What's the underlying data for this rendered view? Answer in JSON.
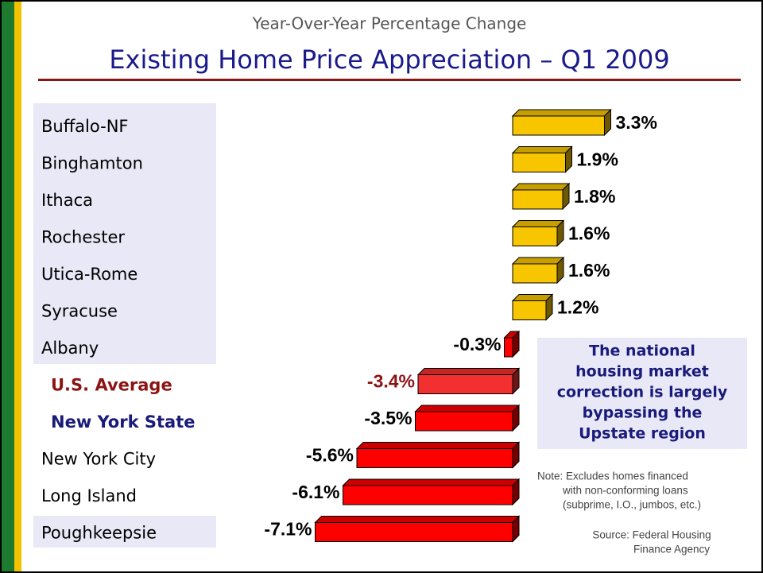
{
  "chart_data": {
    "type": "bar",
    "orientation": "horizontal",
    "subtitle": "Year-Over-Year Percentage Change",
    "title": "Existing Home Price Appreciation – Q1 2009",
    "categories": [
      "Buffalo-NF",
      "Binghamton",
      "Ithaca",
      "Rochester",
      "Utica-Rome",
      "Syracuse",
      "Albany",
      "U.S. Average",
      "New York State",
      "New York City",
      "Long Island",
      "Poughkeepsie"
    ],
    "category_colors": [
      "#000000",
      "#000000",
      "#000000",
      "#000000",
      "#000000",
      "#000000",
      "#000000",
      "#8b1414",
      "#1a1a7a",
      "#000000",
      "#000000",
      "#000000"
    ],
    "values": [
      3.3,
      1.9,
      1.8,
      1.6,
      1.6,
      1.2,
      -0.3,
      -3.4,
      -3.5,
      -5.6,
      -6.1,
      -7.1
    ],
    "value_labels": [
      "3.3%",
      "1.9%",
      "1.8%",
      "1.6%",
      "1.6%",
      "1.2%",
      "-0.3%",
      "-3.4%",
      "-3.5%",
      "-5.6%",
      "-6.1%",
      "-7.1%"
    ],
    "value_label_colors": [
      "#000000",
      "#000000",
      "#000000",
      "#000000",
      "#000000",
      "#000000",
      "#000000",
      "#8b1414",
      "#000000",
      "#000000",
      "#000000",
      "#000000"
    ],
    "colors": [
      "#f7c600",
      "#f7c600",
      "#f7c600",
      "#f7c600",
      "#f7c600",
      "#f7c600",
      "#ff0000",
      "#f23030",
      "#ff0000",
      "#ff0000",
      "#ff0000",
      "#ff0000"
    ],
    "annotation": [
      "The national",
      "housing market",
      "correction is largely",
      "bypassing the",
      "Upstate region"
    ],
    "note": [
      "Note:  Excludes homes financed",
      "with non-conforming loans",
      "(subprime, I.O., jumbos, etc.)"
    ],
    "source": [
      "Source:  Federal Housing",
      "Finance Agency"
    ]
  }
}
